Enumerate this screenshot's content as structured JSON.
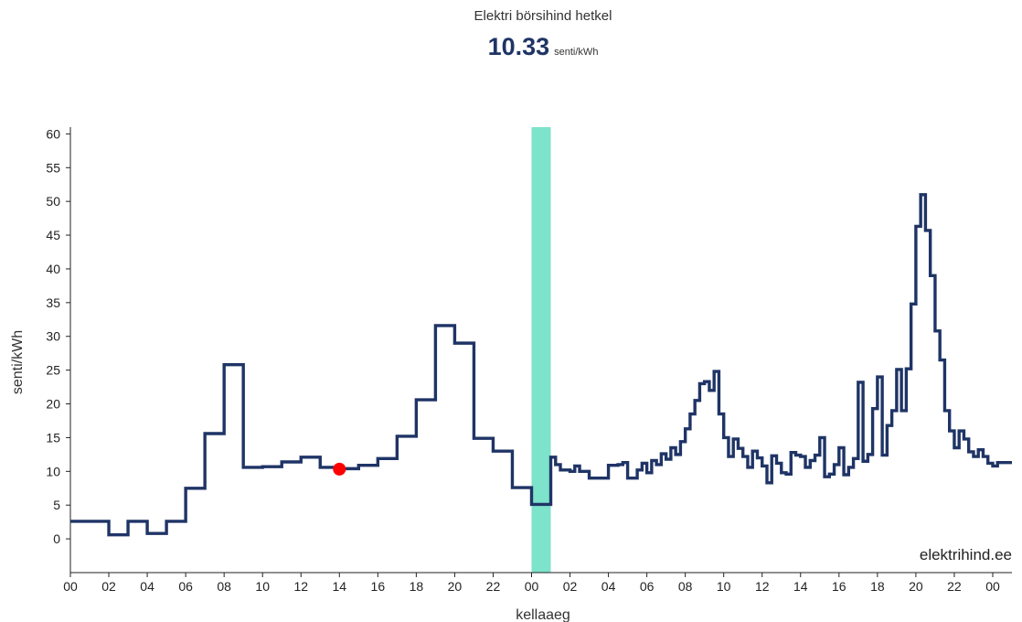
{
  "header": {
    "title": "Elektri börsihind hetkel",
    "price": "10.33",
    "unit": "senti/kWh"
  },
  "watermark": "elektrihind.ee",
  "colors": {
    "line": "#1f3466",
    "marker": "#ff0000",
    "highlight": "#7de3cb"
  },
  "chart_data": {
    "type": "line",
    "step": true,
    "xlabel": "kellaaeg",
    "ylabel": "senti/kWh",
    "xlim": [
      0,
      49
    ],
    "ylim": [
      -5,
      61
    ],
    "yticks": [
      0,
      5,
      10,
      15,
      20,
      25,
      30,
      35,
      40,
      45,
      50,
      55,
      60
    ],
    "xticks": [
      {
        "x": 0,
        "label": "00"
      },
      {
        "x": 2,
        "label": "02"
      },
      {
        "x": 4,
        "label": "04"
      },
      {
        "x": 6,
        "label": "06"
      },
      {
        "x": 8,
        "label": "08"
      },
      {
        "x": 10,
        "label": "10"
      },
      {
        "x": 12,
        "label": "12"
      },
      {
        "x": 14,
        "label": "14"
      },
      {
        "x": 16,
        "label": "16"
      },
      {
        "x": 18,
        "label": "18"
      },
      {
        "x": 20,
        "label": "20"
      },
      {
        "x": 22,
        "label": "22"
      },
      {
        "x": 24,
        "label": "00"
      },
      {
        "x": 26,
        "label": "02"
      },
      {
        "x": 28,
        "label": "04"
      },
      {
        "x": 30,
        "label": "06"
      },
      {
        "x": 32,
        "label": "08"
      },
      {
        "x": 34,
        "label": "10"
      },
      {
        "x": 36,
        "label": "12"
      },
      {
        "x": 38,
        "label": "14"
      },
      {
        "x": 40,
        "label": "16"
      },
      {
        "x": 42,
        "label": "18"
      },
      {
        "x": 44,
        "label": "20"
      },
      {
        "x": 46,
        "label": "22"
      },
      {
        "x": 48,
        "label": "00"
      }
    ],
    "highlight_band": [
      24,
      25
    ],
    "current_point": {
      "x": 14,
      "y": 10.33
    },
    "series": [
      {
        "values": [
          [
            0,
            2.6
          ],
          [
            2,
            0.6
          ],
          [
            3,
            2.6
          ],
          [
            4,
            0.8
          ],
          [
            5,
            2.6
          ],
          [
            6,
            7.5
          ],
          [
            7,
            15.6
          ],
          [
            8,
            25.8
          ],
          [
            9,
            10.6
          ],
          [
            10,
            10.7
          ],
          [
            11,
            11.4
          ],
          [
            12,
            12.1
          ],
          [
            13,
            10.6
          ],
          [
            14,
            10.4
          ],
          [
            15,
            10.9
          ],
          [
            16,
            11.9
          ],
          [
            17,
            15.2
          ],
          [
            18,
            20.6
          ],
          [
            19,
            31.6
          ],
          [
            20,
            29.0
          ],
          [
            21,
            14.9
          ],
          [
            22,
            13.0
          ],
          [
            23,
            7.6
          ],
          [
            24,
            5.1
          ],
          [
            25,
            12.1
          ],
          [
            25.25,
            11.0
          ],
          [
            25.5,
            10.2
          ],
          [
            26,
            10.0
          ],
          [
            26.25,
            10.8
          ],
          [
            26.5,
            10.0
          ],
          [
            27,
            9.0
          ],
          [
            28,
            10.9
          ],
          [
            28.5,
            11.0
          ],
          [
            28.75,
            11.3
          ],
          [
            29,
            9.0
          ],
          [
            29.5,
            10.2
          ],
          [
            29.75,
            11.2
          ],
          [
            30,
            9.8
          ],
          [
            30.25,
            11.6
          ],
          [
            30.5,
            11.0
          ],
          [
            30.75,
            12.6
          ],
          [
            31,
            11.8
          ],
          [
            31.25,
            13.5
          ],
          [
            31.5,
            12.5
          ],
          [
            31.75,
            14.4
          ],
          [
            32,
            16.3
          ],
          [
            32.25,
            18.5
          ],
          [
            32.5,
            20.5
          ],
          [
            32.75,
            23.0
          ],
          [
            33,
            23.3
          ],
          [
            33.25,
            22.0
          ],
          [
            33.5,
            24.8
          ],
          [
            33.75,
            18.5
          ],
          [
            34,
            15.0
          ],
          [
            34.25,
            12.2
          ],
          [
            34.5,
            14.8
          ],
          [
            34.75,
            13.4
          ],
          [
            35,
            12.2
          ],
          [
            35.25,
            10.6
          ],
          [
            35.5,
            13.0
          ],
          [
            35.75,
            12.0
          ],
          [
            36,
            10.8
          ],
          [
            36.25,
            8.3
          ],
          [
            36.5,
            12.3
          ],
          [
            36.75,
            11.2
          ],
          [
            37,
            9.8
          ],
          [
            37.25,
            9.6
          ],
          [
            37.5,
            12.8
          ],
          [
            37.75,
            12.4
          ],
          [
            38,
            12.2
          ],
          [
            38.25,
            10.6
          ],
          [
            38.5,
            11.6
          ],
          [
            38.75,
            12.4
          ],
          [
            39,
            15.0
          ],
          [
            39.25,
            9.2
          ],
          [
            39.5,
            9.6
          ],
          [
            39.75,
            11.0
          ],
          [
            40,
            13.5
          ],
          [
            40.25,
            9.5
          ],
          [
            40.5,
            10.6
          ],
          [
            40.75,
            11.9
          ],
          [
            41,
            23.2
          ],
          [
            41.25,
            11.5
          ],
          [
            41.5,
            12.5
          ],
          [
            41.75,
            19.3
          ],
          [
            42,
            24.0
          ],
          [
            42.25,
            12.4
          ],
          [
            42.5,
            16.8
          ],
          [
            42.75,
            19.0
          ],
          [
            43,
            25.1
          ],
          [
            43.25,
            19.0
          ],
          [
            43.5,
            25.2
          ],
          [
            43.75,
            34.8
          ],
          [
            44,
            46.3
          ],
          [
            44.25,
            51.0
          ],
          [
            44.5,
            45.7
          ],
          [
            44.75,
            39.0
          ],
          [
            45,
            30.8
          ],
          [
            45.25,
            26.5
          ],
          [
            45.5,
            19.0
          ],
          [
            45.75,
            16.0
          ],
          [
            46,
            13.5
          ],
          [
            46.25,
            16.0
          ],
          [
            46.5,
            14.8
          ],
          [
            46.75,
            12.9
          ],
          [
            47,
            12.2
          ],
          [
            47.25,
            13.2
          ],
          [
            47.5,
            12.2
          ],
          [
            47.75,
            11.2
          ],
          [
            48,
            10.8
          ],
          [
            48.25,
            11.3
          ],
          [
            49,
            11.3
          ]
        ]
      }
    ]
  }
}
